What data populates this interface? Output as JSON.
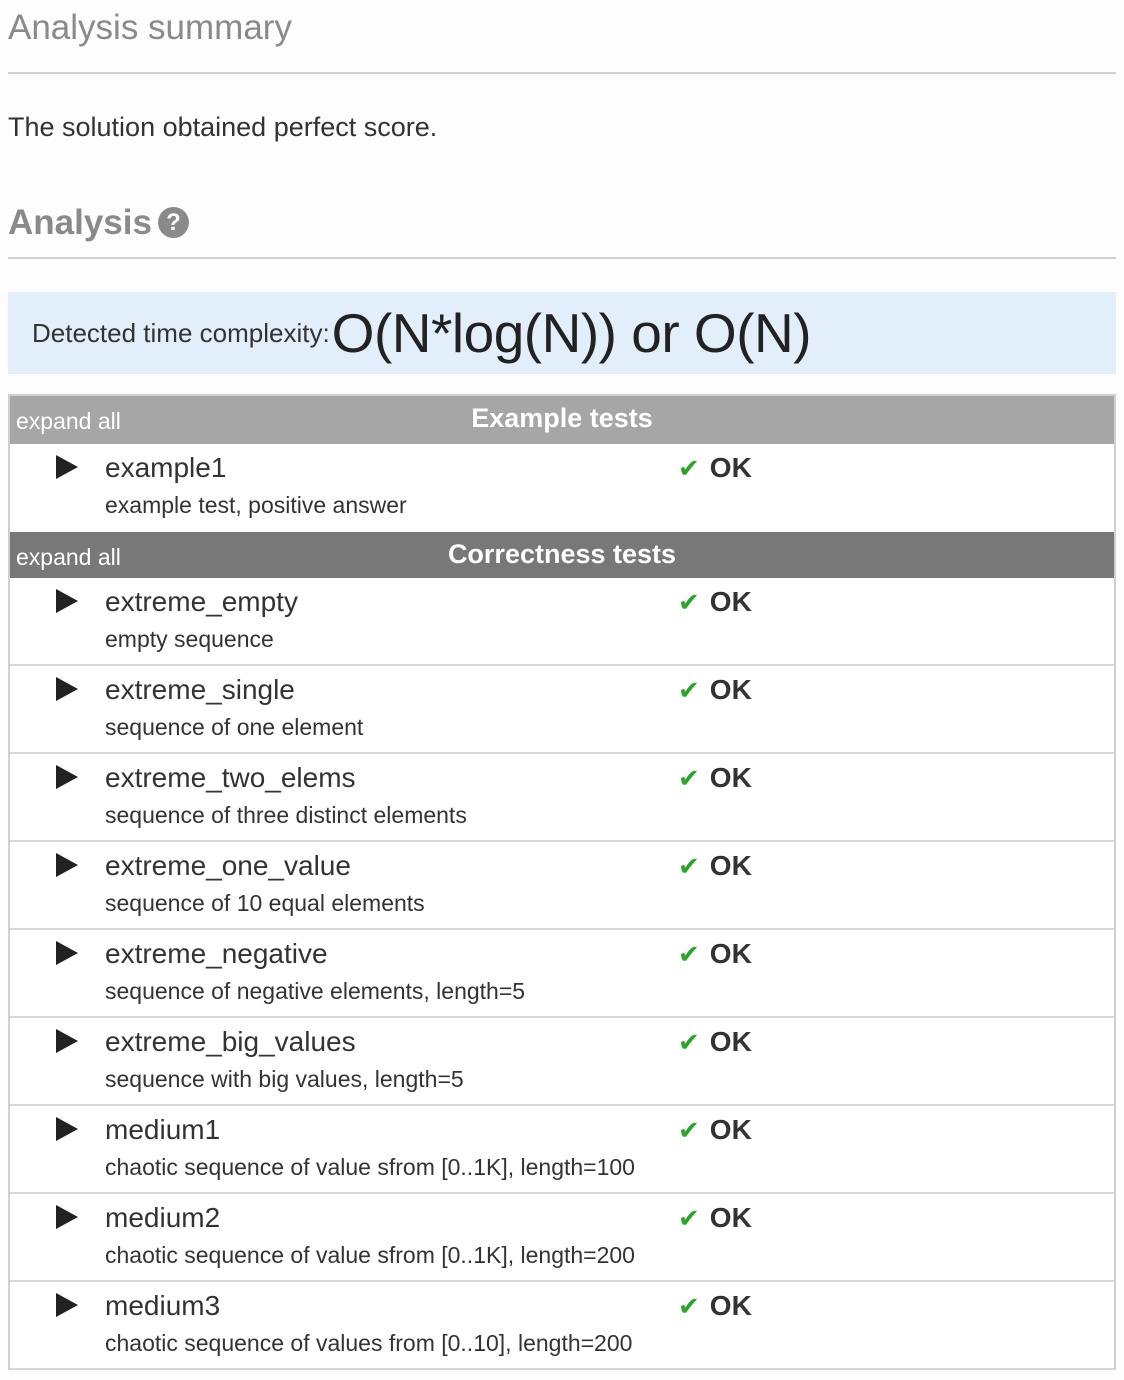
{
  "summary": {
    "title": "Analysis summary",
    "text": "The solution obtained perfect score."
  },
  "analysis": {
    "title": "Analysis",
    "help_icon": "question-circle-icon",
    "complexity_label": "Detected time complexity:",
    "complexity_value": "O(N*log(N)) or O(N)"
  },
  "groups": [
    {
      "expand_label": "expand all",
      "title": "Example tests",
      "tests": [
        {
          "name": "example1",
          "desc": "example test, positive answer",
          "status": "OK"
        }
      ]
    },
    {
      "expand_label": "expand all",
      "title": "Correctness tests",
      "tests": [
        {
          "name": "extreme_empty",
          "desc": "empty sequence",
          "status": "OK"
        },
        {
          "name": "extreme_single",
          "desc": "sequence of one element",
          "status": "OK"
        },
        {
          "name": "extreme_two_elems",
          "desc": "sequence of three distinct elements",
          "status": "OK"
        },
        {
          "name": "extreme_one_value",
          "desc": "sequence of 10 equal elements",
          "status": "OK"
        },
        {
          "name": "extreme_negative",
          "desc": "sequence of negative elements, length=5",
          "status": "OK"
        },
        {
          "name": "extreme_big_values",
          "desc": "sequence with big values, length=5",
          "status": "OK"
        },
        {
          "name": "medium1",
          "desc": "chaotic sequence of value sfrom [0..1K], length=100",
          "status": "OK"
        },
        {
          "name": "medium2",
          "desc": "chaotic sequence of value sfrom [0..1K], length=200",
          "status": "OK"
        },
        {
          "name": "medium3",
          "desc": "chaotic sequence of values from [0..10], length=200",
          "status": "OK"
        }
      ]
    }
  ]
}
